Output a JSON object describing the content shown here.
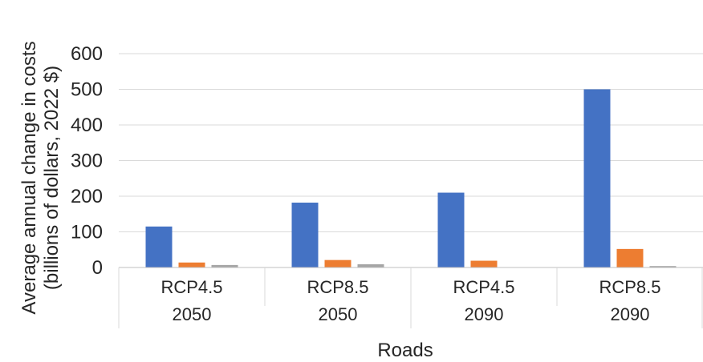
{
  "chart_data": {
    "type": "bar",
    "title": "",
    "xlabel": "Roads",
    "ylabel_line1": "Average annual change in costs",
    "ylabel_line2": "(billions of dollars, 2022 $)",
    "ylim": [
      0,
      600
    ],
    "yticks": [
      "0",
      "100",
      "200",
      "300",
      "400",
      "500",
      "600"
    ],
    "grid": true,
    "categories": [
      {
        "line1": "RCP4.5",
        "line2": "2050"
      },
      {
        "line1": "RCP8.5",
        "line2": "2050"
      },
      {
        "line1": "RCP4.5",
        "line2": "2090"
      },
      {
        "line1": "RCP8.5",
        "line2": "2090"
      }
    ],
    "series": [
      {
        "color": "#4472C4",
        "values": [
          115,
          182,
          210,
          500
        ]
      },
      {
        "color": "#ED7D31",
        "values": [
          14,
          21,
          19,
          52
        ]
      },
      {
        "color": "#A5A5A5",
        "values": [
          7,
          9,
          0,
          4
        ]
      }
    ]
  }
}
